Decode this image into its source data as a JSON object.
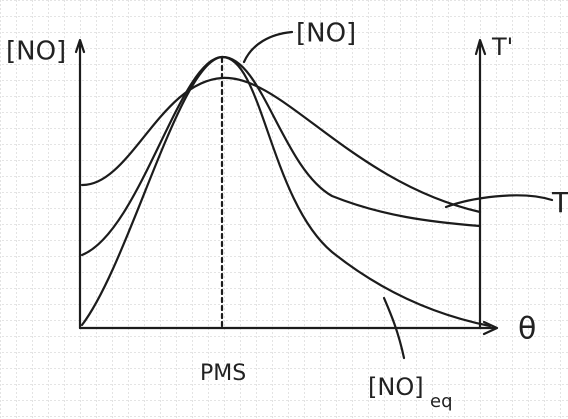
{
  "axes": {
    "left_label": "[NO]",
    "right_label": "T'",
    "x_label": "θ",
    "x_mark": "PMS"
  },
  "curves": {
    "no_label": "[NO]",
    "t_label": "T",
    "eq_label": "[NO]",
    "eq_subscript": "eq"
  }
}
